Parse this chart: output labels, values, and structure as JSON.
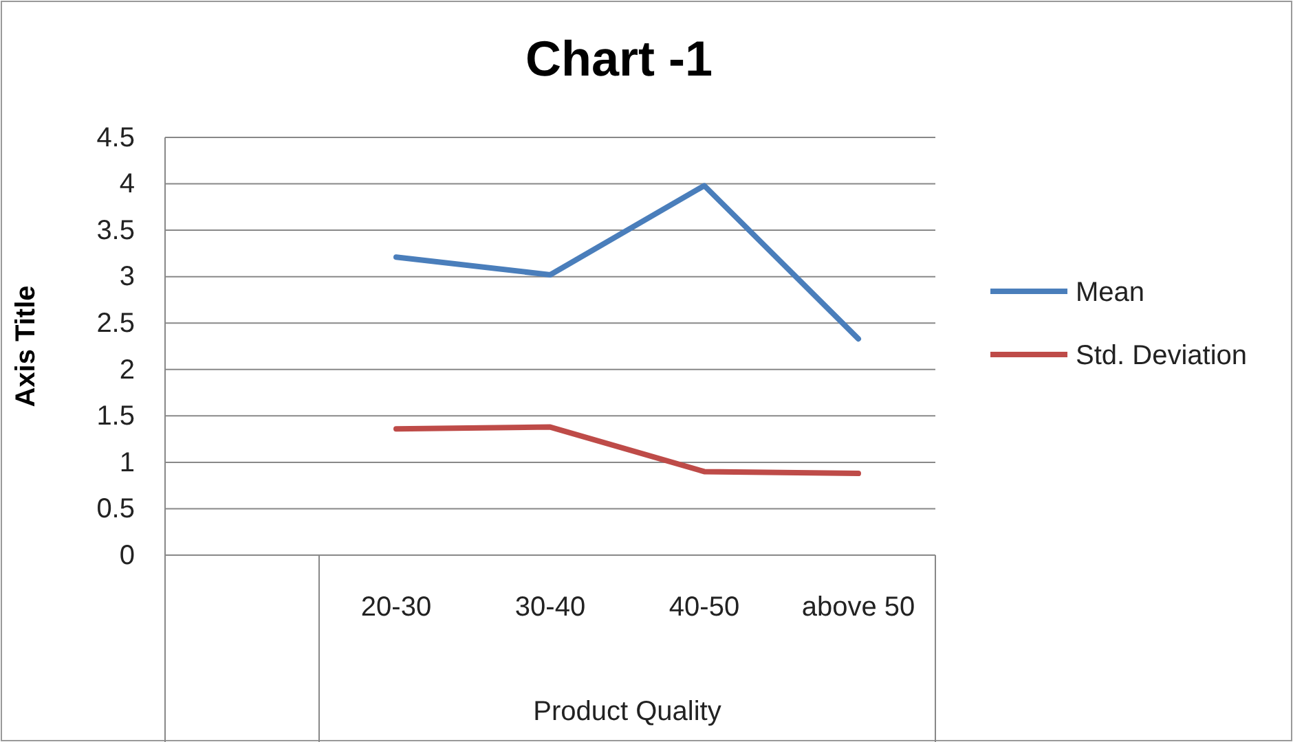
{
  "chart_data": {
    "type": "line",
    "title": "Chart -1",
    "ylabel": "Axis Title",
    "xlabel": "Product Quality",
    "categories": [
      null,
      "20-30",
      "30-40",
      "40-50",
      "above 50"
    ],
    "series": [
      {
        "name": "Mean",
        "color": "#4a7ebb",
        "values": [
          null,
          3.21,
          3.02,
          3.98,
          2.33
        ]
      },
      {
        "name": "Std. Deviation",
        "color": "#be4b48",
        "values": [
          null,
          1.36,
          1.38,
          0.9,
          0.88
        ]
      }
    ],
    "ylim": [
      0,
      4.5
    ],
    "yticks": [
      0,
      0.5,
      1,
      1.5,
      2,
      2.5,
      3,
      3.5,
      4,
      4.5
    ],
    "grid": "y",
    "legend": "right",
    "marker": "none",
    "line_style": "solid"
  }
}
